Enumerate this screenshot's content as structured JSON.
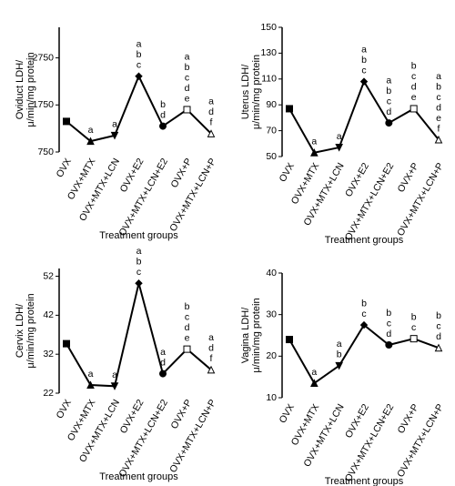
{
  "chart_data": [
    {
      "type": "line",
      "ylabel": [
        "Oviduct LDH/",
        "μ/min/mg protein"
      ],
      "xlabel": "Treatment groups",
      "categories": [
        "OVX",
        "OVX+MTX",
        "OVX+MTX+LCN",
        "OVX+E2",
        "OVX+MTX+LCN+E2",
        "OVX+P",
        "OVX+MTX+LCN+P"
      ],
      "values": [
        1400,
        980,
        1100,
        2360,
        1300,
        1650,
        1140
      ],
      "point_labels": [
        null,
        [
          "a"
        ],
        [
          "a"
        ],
        [
          "a",
          "b",
          "c"
        ],
        [
          "b",
          "d"
        ],
        [
          "a",
          "b",
          "c",
          "d",
          "e"
        ],
        [
          "a",
          "d",
          "f"
        ]
      ],
      "ylim": [
        750,
        3400
      ],
      "yticks": [
        750,
        1750,
        2750
      ],
      "color": "#000000"
    },
    {
      "type": "line",
      "ylabel": [
        "Uterus LDH/",
        "μ/min/mg protein"
      ],
      "xlabel": "Treatment groups",
      "categories": [
        "OVX",
        "OVX+MTX",
        "OVX+MTX+LCN",
        "OVX+E2",
        "OVX+MTX+LCN+E2",
        "OVX+P",
        "OVX+MTX+LCN+P"
      ],
      "values": [
        87,
        53,
        57,
        108,
        76,
        87,
        63
      ],
      "point_labels": [
        null,
        [
          "a"
        ],
        [
          "a"
        ],
        [
          "a",
          "b",
          "c"
        ],
        [
          "a",
          "b",
          "c",
          "d"
        ],
        [
          "b",
          "c",
          "d",
          "e"
        ],
        [
          "a",
          "b",
          "c",
          "d",
          "e",
          "f"
        ]
      ],
      "ylim": [
        50,
        150
      ],
      "yticks": [
        50,
        70,
        90,
        110,
        130,
        150
      ],
      "color": "#000000"
    },
    {
      "type": "line",
      "ylabel": [
        "Cervix LDH/",
        "μ/min/mg protein"
      ],
      "xlabel": "Treatment groups",
      "categories": [
        "OVX",
        "OVX+MTX",
        "OVX+MTX+LCN",
        "OVX+E2",
        "OVX+MTX+LCN+E2",
        "OVX+P",
        "OVX+MTX+LCN+P"
      ],
      "values": [
        34.7,
        24.1,
        23.8,
        50.2,
        27,
        33.3,
        28
      ],
      "point_labels": [
        null,
        [
          "a"
        ],
        [
          "a"
        ],
        [
          "a",
          "b",
          "c"
        ],
        [
          "a",
          "d"
        ],
        [
          "b",
          "c",
          "d",
          "e"
        ],
        [
          "a",
          "d",
          "f"
        ]
      ],
      "ylim": [
        22,
        54
      ],
      "yticks": [
        22,
        32,
        42,
        52
      ],
      "color": "#000000"
    },
    {
      "type": "line",
      "ylabel": [
        "Vagina LDH/",
        "μ/min/mg protein"
      ],
      "xlabel": "Treatment groups",
      "categories": [
        "OVX",
        "OVX+MTX",
        "OVX+MTX+LCN",
        "OVX+E2",
        "OVX+MTX+LCN+E2",
        "OVX+P",
        "OVX+MTX+LCN+P"
      ],
      "values": [
        24,
        13.5,
        17.7,
        27.5,
        22.7,
        24.2,
        22
      ],
      "point_labels": [
        null,
        [
          "a"
        ],
        [
          "a",
          "b"
        ],
        [
          "b",
          "c"
        ],
        [
          "b",
          "c",
          "d"
        ],
        [
          "b",
          "c"
        ],
        [
          "b",
          "c",
          "d"
        ]
      ],
      "ylim": [
        10,
        40
      ],
      "yticks": [
        10,
        20,
        30,
        40
      ],
      "color": "#000000"
    }
  ]
}
